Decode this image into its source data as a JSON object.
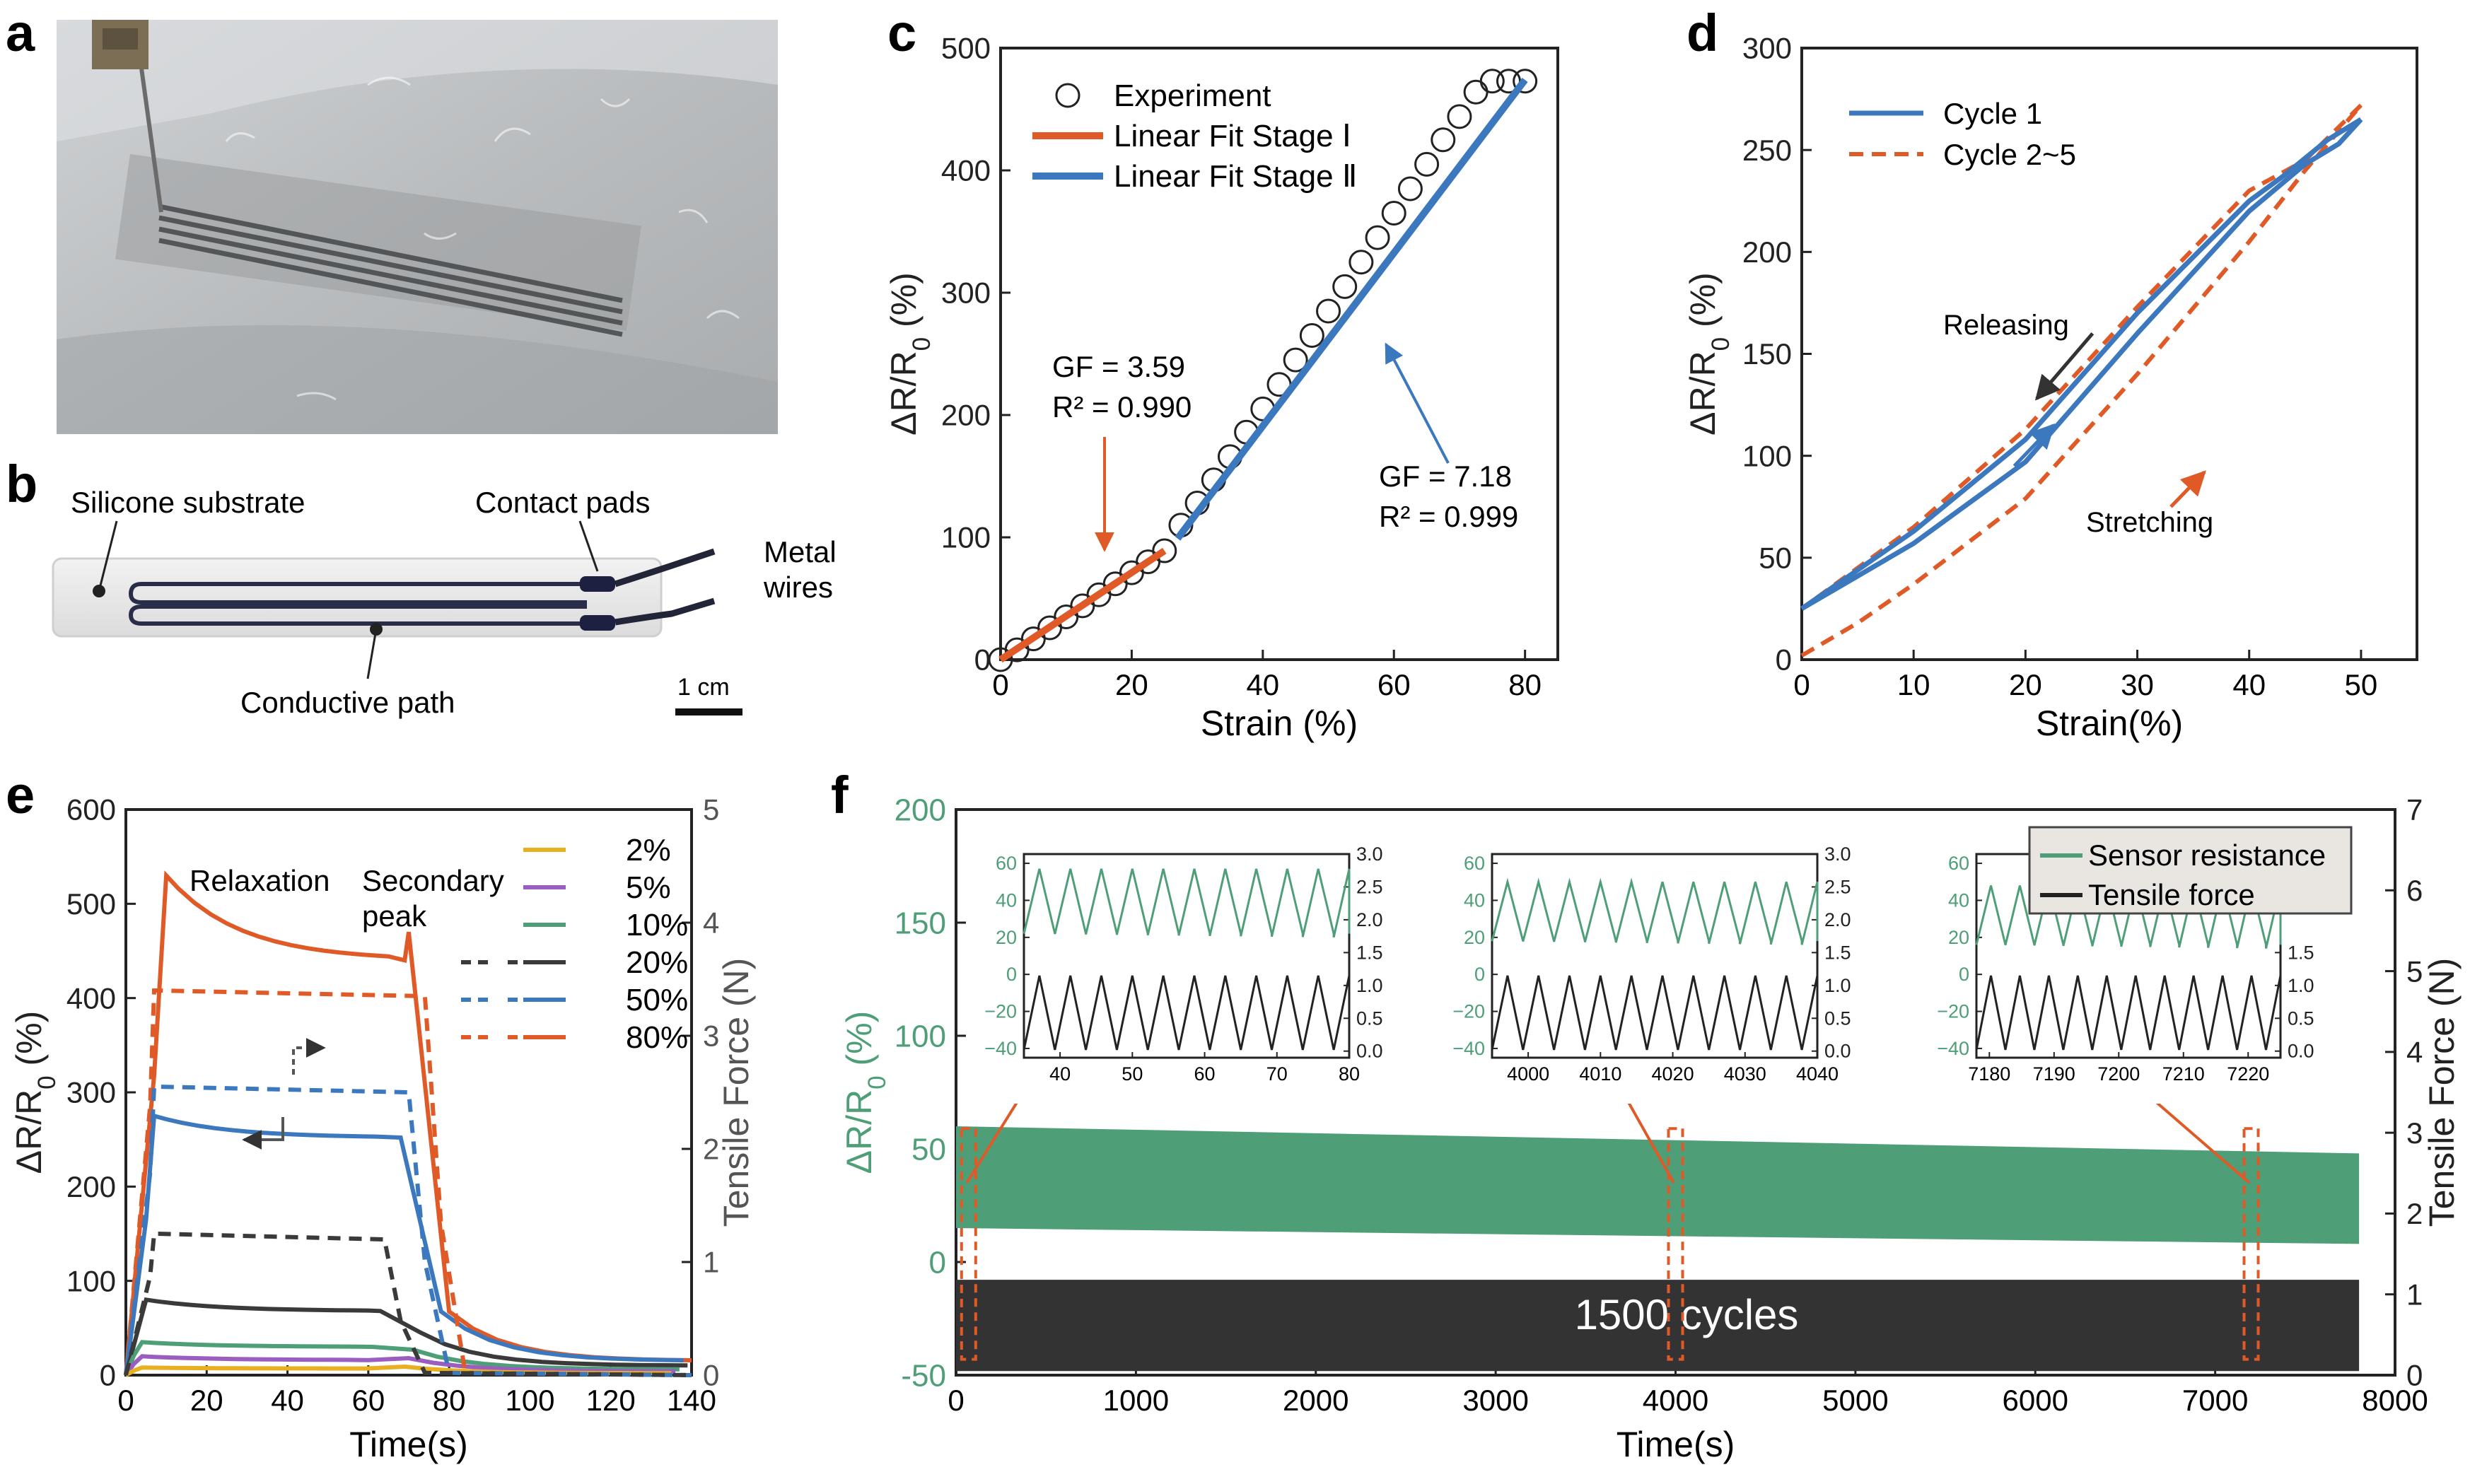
{
  "panel_labels": [
    "a",
    "b",
    "c",
    "d",
    "e",
    "f"
  ],
  "panel_b": {
    "labels": {
      "substrate": "Silicone substrate",
      "pads": "Contact pads",
      "wires_1": "Metal",
      "wires_2": "wires",
      "path": "Conductive path",
      "scale": "1 cm"
    }
  },
  "colors": {
    "orange": "#E05A28",
    "blue": "#3B78BE",
    "green": "#4E9E78",
    "dark": "#3A3A3A",
    "yellow": "#E8B020",
    "purple": "#9A5DC0"
  },
  "chart_data": [
    {
      "id": "c",
      "type": "scatter",
      "xlabel": "Strain (%)",
      "ylabel": "ΔR/R0 (%)",
      "xlim": [
        0,
        85
      ],
      "ylim": [
        0,
        500
      ],
      "xticks": [
        "0",
        "20",
        "40",
        "60",
        "80"
      ],
      "yticks": [
        "0",
        "100",
        "200",
        "300",
        "400",
        "500"
      ],
      "legend": [
        "Experiment",
        "Linear Fit Stage Ⅰ",
        "Linear Fit Stage Ⅱ"
      ],
      "legend_position": "top-left",
      "annotations": {
        "stage1": [
          "GF = 3.59",
          "R² = 0.990"
        ],
        "stage2": [
          "GF = 7.18",
          "R² = 0.999"
        ]
      },
      "series": [
        {
          "name": "Experiment",
          "x": [
            0,
            2.5,
            5,
            7.5,
            10,
            12.5,
            15,
            17.5,
            20,
            22.5,
            25,
            27.5,
            30,
            32.5,
            35,
            37.5,
            40,
            42.5,
            45,
            47.5,
            50,
            52.5,
            55,
            57.5,
            60,
            62.5,
            65,
            67.5,
            70,
            72.5,
            75,
            77.5,
            80
          ],
          "y": [
            0,
            8,
            17,
            26,
            35,
            44,
            53,
            62,
            71,
            80,
            89,
            110,
            128,
            147,
            166,
            186,
            205,
            225,
            245,
            265,
            285,
            305,
            325,
            345,
            365,
            385,
            405,
            425,
            444,
            464,
            483,
            503,
            473
          ]
        },
        {
          "name": "Linear Fit Stage Ⅰ",
          "x": [
            0,
            25
          ],
          "y": [
            0,
            89
          ]
        },
        {
          "name": "Linear Fit Stage Ⅱ",
          "x": [
            27,
            80
          ],
          "y": [
            99,
            474
          ]
        }
      ]
    },
    {
      "id": "d",
      "type": "line",
      "xlabel": "Strain(%)",
      "ylabel": "ΔR/R0 (%)",
      "xlim": [
        0,
        55
      ],
      "ylim": [
        0,
        300
      ],
      "xticks": [
        "0",
        "10",
        "20",
        "30",
        "40",
        "50"
      ],
      "yticks": [
        "0",
        "50",
        "100",
        "150",
        "200",
        "250",
        "300"
      ],
      "legend": [
        "Cycle 1",
        "Cycle 2~5"
      ],
      "legend_position": "top-left",
      "annotations": {
        "releasing": "Releasing",
        "stretching": "Stretching"
      },
      "series": [
        {
          "name": "Cycle 1",
          "stretch": {
            "x": [
              0,
              10,
              20,
              30,
              40,
              45,
              48,
              50
            ],
            "y": [
              25,
              57,
              97,
              160,
              220,
              243,
              253,
              265
            ]
          },
          "release": {
            "x": [
              50,
              47,
              43,
              40,
              30,
              20,
              10,
              0
            ],
            "y": [
              265,
              255,
              237,
              225,
              170,
              108,
              63,
              25
            ]
          }
        },
        {
          "name": "Cycle 2~5",
          "stretch": {
            "x": [
              0,
              5,
              10,
              20,
              30,
              40,
              45,
              50
            ],
            "y": [
              2,
              18,
              37,
              79,
              140,
              205,
              240,
              272
            ]
          },
          "release": {
            "x": [
              50,
              45,
              40,
              30,
              20,
              10,
              0
            ],
            "y": [
              272,
              245,
              230,
              173,
              113,
              65,
              25
            ]
          }
        }
      ]
    },
    {
      "id": "e",
      "type": "line",
      "xlabel": "Time(s)",
      "ylabel": "ΔR/R0 (%)",
      "ylabel_right": "Tensile Force (N)",
      "xlim": [
        0,
        140
      ],
      "ylim": [
        0,
        600
      ],
      "ylim_right": [
        0,
        5
      ],
      "xticks": [
        "0",
        "20",
        "40",
        "60",
        "80",
        "100",
        "120",
        "140"
      ],
      "yticks": [
        "0",
        "100",
        "200",
        "300",
        "400",
        "500",
        "600"
      ],
      "yticks_right": [
        "0",
        "1",
        "2",
        "3",
        "4",
        "5"
      ],
      "legend": [
        "2%",
        "5%",
        "10%",
        "20%",
        "50%",
        "80%"
      ],
      "legend_position": "top-right",
      "annotations": {
        "relaxation": "Relaxation",
        "secondary_1": "Secondary",
        "secondary_2": "peak"
      },
      "series": [
        {
          "name": "80%",
          "axis": "left",
          "peak": 530,
          "hold_end": 440,
          "tail": 15,
          "t_up": 7,
          "t_peak": 10,
          "t_down": 72,
          "t_sec": 70
        },
        {
          "name": "50%",
          "axis": "left",
          "peak": 275,
          "hold_end": 252,
          "tail": 15,
          "t_up": 5,
          "t_peak": 7,
          "t_down": 70
        },
        {
          "name": "20%",
          "axis": "left",
          "peak": 80,
          "hold_end": 68,
          "tail": 10,
          "t_up": 3,
          "t_peak": 5,
          "t_down": 65
        },
        {
          "name": "10%",
          "axis": "left",
          "peak": 35,
          "hold_end": 30,
          "tail": 6,
          "t_up": 2,
          "t_peak": 4,
          "t_down": 63
        },
        {
          "name": "5%",
          "axis": "left",
          "peak": 20,
          "hold_end": 16,
          "tail": 4,
          "t_up": 2,
          "t_peak": 4,
          "t_down": 62
        },
        {
          "name": "2%",
          "axis": "left",
          "peak": 8,
          "hold_end": 7,
          "tail": 2,
          "t_up": 2,
          "t_peak": 4,
          "t_down": 61
        },
        {
          "name": "80%",
          "axis": "right",
          "force": 3.4,
          "force_end": 3.35,
          "t_down": 78
        },
        {
          "name": "50%",
          "axis": "right",
          "force": 2.55,
          "force_end": 2.5,
          "t_down": 74
        },
        {
          "name": "20%",
          "axis": "right",
          "force": 1.25,
          "force_end": 1.2,
          "t_down": 68
        }
      ]
    },
    {
      "id": "f",
      "type": "area",
      "xlabel": "Time(s)",
      "ylabel": "ΔR/R0 (%)",
      "ylabel_right": "Tensile Force (N)",
      "xlim": [
        0,
        8000
      ],
      "ylim": [
        -50,
        200
      ],
      "ylim_right": [
        0,
        7
      ],
      "xticks": [
        "0",
        "1000",
        "2000",
        "3000",
        "4000",
        "5000",
        "6000",
        "7000",
        "8000"
      ],
      "yticks": [
        "-50",
        "0",
        "50",
        "100",
        "150",
        "200"
      ],
      "yticks_right": [
        "0",
        "1",
        "2",
        "3",
        "4",
        "5",
        "6",
        "7"
      ],
      "legend": [
        "Sensor resistance",
        "Tensile force"
      ],
      "legend_position": "top-right",
      "annotation": "1500 cycles",
      "series": [
        {
          "name": "Sensor resistance",
          "x": [
            0,
            7800
          ],
          "upper": [
            60,
            48
          ],
          "lower": [
            15,
            8
          ]
        },
        {
          "name": "Tensile force",
          "x": [
            0,
            7800
          ],
          "upper_force": [
            1.18,
            1.18
          ],
          "lower_force": [
            0.05,
            0.05
          ]
        }
      ],
      "insets": [
        {
          "xticks": [
            "40",
            "50",
            "60",
            "70",
            "80"
          ],
          "xlim": [
            35,
            80
          ],
          "amp_top": 57,
          "amp_bottom": 22
        },
        {
          "xticks": [
            "4000",
            "4010",
            "4020",
            "4030",
            "4040"
          ],
          "xlim": [
            3995,
            4040
          ],
          "amp_top": 50,
          "amp_bottom": 18
        },
        {
          "xticks": [
            "7180",
            "7190",
            "7200",
            "7210",
            "7220"
          ],
          "xlim": [
            7178,
            7225
          ],
          "amp_top": 48,
          "amp_bottom": 16
        }
      ],
      "inset_yticks_left": [
        "60",
        "40",
        "20",
        "0",
        "−20",
        "−40"
      ],
      "inset_yticks_right": [
        "3.0",
        "2.5",
        "2.0",
        "1.5",
        "1.0",
        "0.5",
        "0.0"
      ]
    }
  ]
}
